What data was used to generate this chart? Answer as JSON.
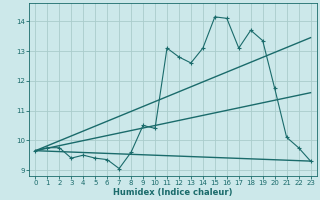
{
  "title": "",
  "xlabel": "Humidex (Indice chaleur)",
  "ylabel": "",
  "bg_color": "#cce8ea",
  "grid_color": "#aacccc",
  "line_color": "#1a6b6b",
  "xlim": [
    -0.5,
    23.5
  ],
  "ylim": [
    8.8,
    14.6
  ],
  "xticks": [
    0,
    1,
    2,
    3,
    4,
    5,
    6,
    7,
    8,
    9,
    10,
    11,
    12,
    13,
    14,
    15,
    16,
    17,
    18,
    19,
    20,
    21,
    22,
    23
  ],
  "yticks": [
    9,
    10,
    11,
    12,
    13,
    14
  ],
  "series1_x": [
    0,
    1,
    2,
    3,
    4,
    5,
    6,
    7,
    8,
    9,
    10,
    11,
    12,
    13,
    14,
    15,
    16,
    17,
    18,
    19,
    20,
    21,
    22,
    23
  ],
  "series1_y": [
    9.65,
    9.75,
    9.75,
    9.4,
    9.5,
    9.4,
    9.35,
    9.05,
    9.6,
    10.5,
    10.4,
    13.1,
    12.8,
    12.6,
    13.1,
    14.15,
    14.1,
    13.1,
    13.7,
    13.35,
    11.75,
    10.1,
    9.75,
    9.3
  ],
  "series2_x": [
    0,
    23
  ],
  "series2_y": [
    9.65,
    9.3
  ],
  "series3_x": [
    0,
    23
  ],
  "series3_y": [
    9.65,
    11.6
  ],
  "series4_x": [
    0,
    23
  ],
  "series4_y": [
    9.65,
    13.45
  ]
}
